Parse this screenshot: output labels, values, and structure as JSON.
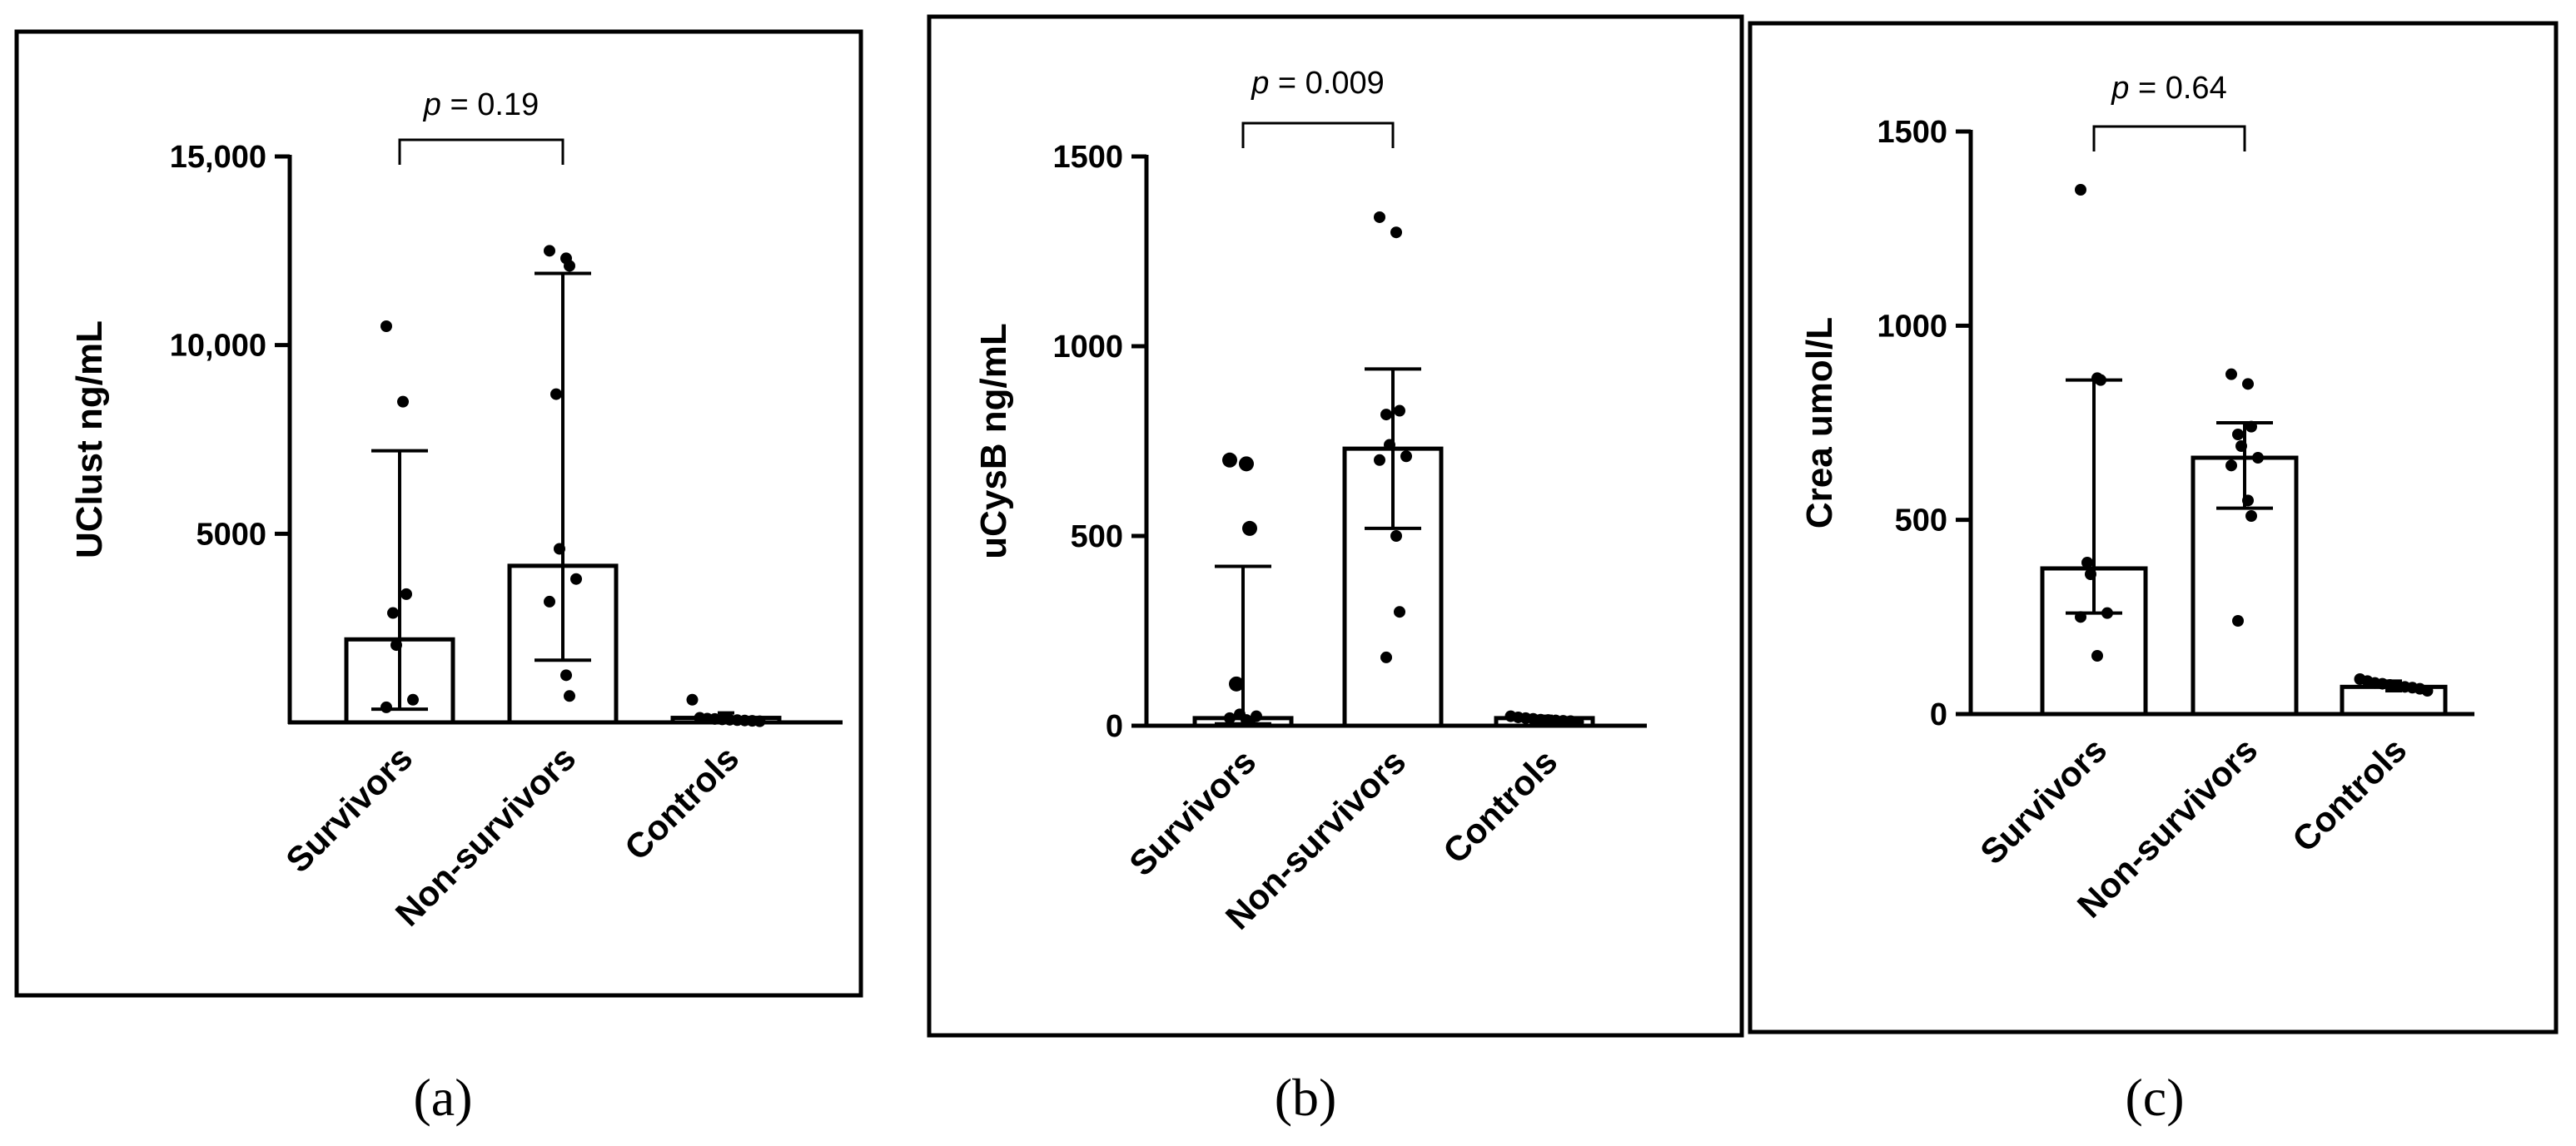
{
  "chart_data": [
    {
      "type": "bar",
      "panel_label": "(a)",
      "ylabel": "UClust ng/mL",
      "categories": [
        "Survivors",
        "Non-survivors",
        "Controls"
      ],
      "ylim": [
        0,
        15000
      ],
      "yticks": [
        5000,
        10000,
        15000
      ],
      "ytick_labels": [
        "5000",
        "10,000",
        "15,000"
      ],
      "bars": [
        2200,
        4150,
        120
      ],
      "error_low": [
        350,
        1650,
        60
      ],
      "error_high": [
        7200,
        11900,
        250
      ],
      "points": [
        [
          10500,
          8500,
          3400,
          2900,
          2050,
          600,
          400
        ],
        [
          12500,
          12300,
          12100,
          8700,
          4600,
          3800,
          3200,
          1250,
          700
        ],
        [
          600,
          120,
          100,
          90,
          80,
          70,
          60,
          50,
          40,
          30
        ]
      ],
      "comparison": {
        "label": "p = 0.19",
        "p_symbol": "p",
        "p_text": " = 0.19",
        "between": [
          0,
          1
        ]
      }
    },
    {
      "type": "bar",
      "panel_label": "(b)",
      "ylabel": "uCysB ng/mL",
      "categories": [
        "Survivors",
        "Non-survivors",
        "Controls"
      ],
      "ylim": [
        0,
        1500
      ],
      "yticks": [
        0,
        500,
        1000,
        1500
      ],
      "ytick_labels": [
        "0",
        "500",
        "1000",
        "1500"
      ],
      "bars": [
        20,
        730,
        20
      ],
      "error_low": [
        5,
        520,
        10
      ],
      "error_high": [
        420,
        940,
        25
      ],
      "points": [
        [
          700,
          690,
          520,
          110,
          30,
          25,
          20,
          15,
          10
        ],
        [
          1340,
          1300,
          830,
          820,
          740,
          710,
          700,
          500,
          300,
          180
        ],
        [
          25,
          22,
          20,
          18,
          16,
          15,
          14,
          13,
          12,
          10
        ]
      ],
      "comparison": {
        "label": "p = 0.009",
        "p_symbol": "p",
        "p_text": " = 0.009",
        "between": [
          0,
          1
        ]
      }
    },
    {
      "type": "bar",
      "panel_label": "(c)",
      "ylabel": "Crea umol/L",
      "categories": [
        "Survivors",
        "Non-survivors",
        "Controls"
      ],
      "ylim": [
        0,
        1500
      ],
      "yticks": [
        0,
        500,
        1000,
        1500
      ],
      "ytick_labels": [
        "0",
        "500",
        "1000",
        "1500"
      ],
      "bars": [
        375,
        660,
        70
      ],
      "error_low": [
        260,
        530,
        60
      ],
      "error_high": [
        860,
        750,
        85
      ],
      "points": [
        [
          1350,
          865,
          860,
          390,
          360,
          260,
          250,
          150
        ],
        [
          875,
          850,
          740,
          720,
          690,
          660,
          640,
          550,
          510,
          240
        ],
        [
          90,
          85,
          80,
          78,
          75,
          72,
          70,
          68,
          65,
          60
        ]
      ],
      "comparison": {
        "label": "p = 0.64",
        "p_symbol": "p",
        "p_text": " = 0.64",
        "between": [
          0,
          1
        ]
      }
    }
  ]
}
